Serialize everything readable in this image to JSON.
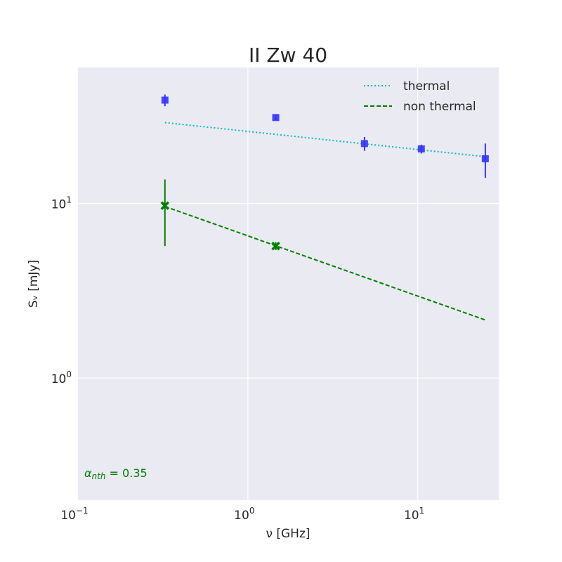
{
  "chart_data": {
    "type": "scatter",
    "title": "II Zw 40",
    "xlabel": "ν [GHz]",
    "ylabel": "Sᵥ [mJy]",
    "xscale": "log",
    "yscale": "log",
    "xlim": [
      0.1,
      30
    ],
    "ylim": [
      0.2,
      60
    ],
    "grid": true,
    "background_color": "#eaeaf2",
    "legend_placement": "top-right",
    "x_ticks": [
      {
        "value": 0.1,
        "base": "10",
        "exp": "−1"
      },
      {
        "value": 1,
        "base": "10",
        "exp": "0"
      },
      {
        "value": 10,
        "base": "10",
        "exp": "1"
      }
    ],
    "y_ticks": [
      {
        "value": 1,
        "base": "10",
        "exp": "0"
      },
      {
        "value": 10,
        "base": "10",
        "exp": "1"
      }
    ],
    "series": [
      {
        "name": "thermal",
        "kind": "line",
        "style": "dotted",
        "color": "#00bfbf",
        "x": [
          0.325,
          25
        ],
        "y": [
          29,
          18.5
        ]
      },
      {
        "name": "non thermal",
        "kind": "line",
        "style": "dashed",
        "color": "#008000",
        "x": [
          0.325,
          25
        ],
        "y": [
          9.6,
          2.15
        ]
      },
      {
        "kind": "errorbar",
        "marker": "square",
        "color": "#3333ff",
        "x": [
          0.325,
          1.46,
          4.86,
          10.5,
          25
        ],
        "y": [
          39,
          31,
          22,
          20.5,
          18
        ],
        "yerr_low": [
          3,
          1,
          2,
          1.2,
          4
        ],
        "yerr_high": [
          3,
          1,
          2,
          1.2,
          4
        ]
      },
      {
        "kind": "errorbar",
        "marker": "x",
        "color": "#008000",
        "x": [
          0.325,
          1.46
        ],
        "y": [
          9.7,
          5.7
        ],
        "yerr_low": [
          4,
          0.3
        ],
        "yerr_high": [
          4,
          0.3
        ]
      }
    ],
    "annotation": {
      "symbol": "α",
      "subscript": "nth",
      "text": " = 0.35",
      "color": "#008000"
    }
  }
}
